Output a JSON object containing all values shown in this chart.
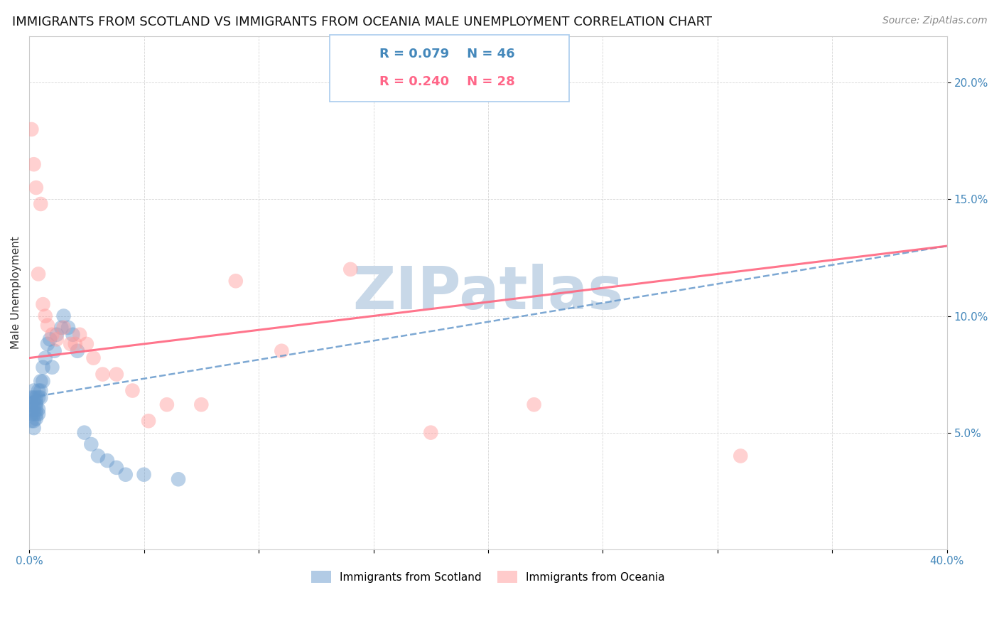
{
  "title": "IMMIGRANTS FROM SCOTLAND VS IMMIGRANTS FROM OCEANIA MALE UNEMPLOYMENT CORRELATION CHART",
  "source": "Source: ZipAtlas.com",
  "ylabel": "Male Unemployment",
  "xlim": [
    0.0,
    0.4
  ],
  "ylim": [
    0.0,
    0.22
  ],
  "yticks": [
    0.05,
    0.1,
    0.15,
    0.2
  ],
  "ytick_labels": [
    "5.0%",
    "10.0%",
    "15.0%",
    "20.0%"
  ],
  "xticks": [
    0.0,
    0.05,
    0.1,
    0.15,
    0.2,
    0.25,
    0.3,
    0.35,
    0.4
  ],
  "xtick_labels": [
    "0.0%",
    "",
    "",
    "",
    "",
    "",
    "",
    "",
    "40.0%"
  ],
  "color_scotland": "#6699CC",
  "color_oceania": "#FF9999",
  "color_trendline_scotland": "#6699CC",
  "color_trendline_oceania": "#FF6680",
  "background_color": "#FFFFFF",
  "watermark_color": "#C8D8E8",
  "title_fontsize": 13,
  "source_fontsize": 10,
  "label_fontsize": 11,
  "tick_fontsize": 11,
  "legend_fontsize": 13,
  "scotland_x": [
    0.001,
    0.001,
    0.001,
    0.001,
    0.001,
    0.002,
    0.002,
    0.002,
    0.002,
    0.002,
    0.002,
    0.002,
    0.003,
    0.003,
    0.003,
    0.003,
    0.003,
    0.003,
    0.004,
    0.004,
    0.004,
    0.004,
    0.005,
    0.005,
    0.005,
    0.006,
    0.006,
    0.007,
    0.008,
    0.009,
    0.01,
    0.011,
    0.012,
    0.014,
    0.015,
    0.017,
    0.019,
    0.021,
    0.024,
    0.027,
    0.03,
    0.034,
    0.038,
    0.042,
    0.05,
    0.065
  ],
  "scotland_y": [
    0.062,
    0.065,
    0.058,
    0.055,
    0.06,
    0.068,
    0.063,
    0.058,
    0.055,
    0.052,
    0.06,
    0.065,
    0.065,
    0.062,
    0.058,
    0.056,
    0.06,
    0.063,
    0.068,
    0.065,
    0.06,
    0.058,
    0.072,
    0.068,
    0.065,
    0.078,
    0.072,
    0.082,
    0.088,
    0.09,
    0.078,
    0.085,
    0.092,
    0.095,
    0.1,
    0.095,
    0.092,
    0.085,
    0.05,
    0.045,
    0.04,
    0.038,
    0.035,
    0.032,
    0.032,
    0.03
  ],
  "oceania_x": [
    0.001,
    0.002,
    0.003,
    0.004,
    0.005,
    0.006,
    0.007,
    0.008,
    0.01,
    0.012,
    0.015,
    0.018,
    0.02,
    0.022,
    0.025,
    0.028,
    0.032,
    0.038,
    0.045,
    0.052,
    0.06,
    0.075,
    0.09,
    0.11,
    0.14,
    0.175,
    0.22,
    0.31
  ],
  "oceania_y": [
    0.18,
    0.165,
    0.155,
    0.118,
    0.148,
    0.105,
    0.1,
    0.096,
    0.092,
    0.09,
    0.095,
    0.088,
    0.088,
    0.092,
    0.088,
    0.082,
    0.075,
    0.075,
    0.068,
    0.055,
    0.062,
    0.062,
    0.115,
    0.085,
    0.12,
    0.05,
    0.062,
    0.04
  ]
}
